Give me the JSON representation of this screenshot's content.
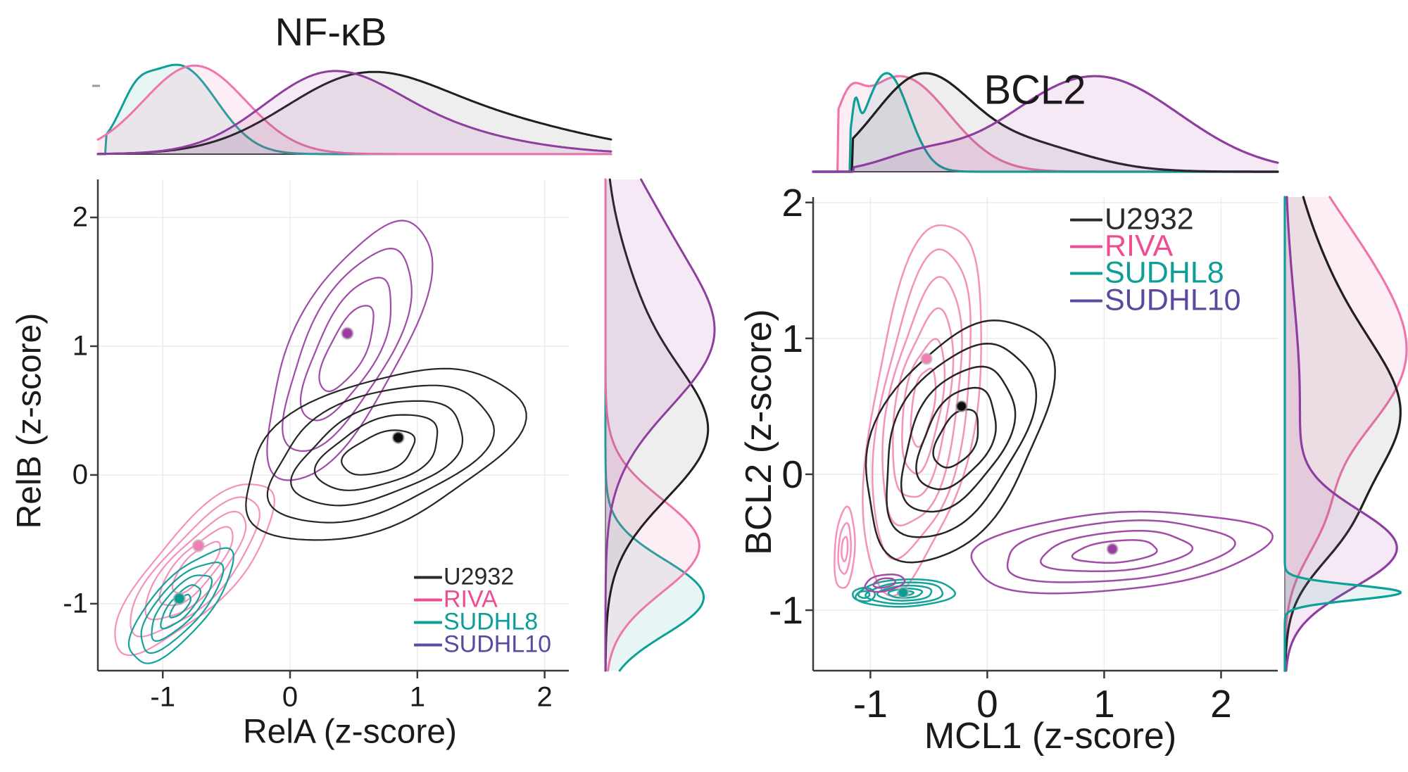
{
  "figure": {
    "background": "#ffffff",
    "grid_color": "#ECECEC",
    "spine_color": "#3A3A3A"
  },
  "chart_data": [
    {
      "id": "nfkb",
      "type": "contour-joint-kde",
      "title": "NF-κB",
      "xlabel": "RelA (z-score)",
      "ylabel": "RelB (z-score)",
      "xlim": [
        -1.51,
        2.19
      ],
      "ylim": [
        -1.52,
        2.295
      ],
      "grid": true,
      "legend_position": "bottom-right",
      "x_ticks": [
        {
          "v": -1,
          "label": "-1"
        },
        {
          "v": 0,
          "label": "0"
        },
        {
          "v": 1,
          "label": "1"
        },
        {
          "v": 2,
          "label": "2"
        }
      ],
      "y_ticks": [
        {
          "v": 2,
          "label": "2"
        },
        {
          "v": 1,
          "label": "1"
        },
        {
          "v": 0,
          "label": "0"
        },
        {
          "v": -1,
          "label": "-1"
        }
      ],
      "contour_order": [
        1,
        2,
        3,
        0
      ],
      "kde_top_order": [
        2,
        1,
        0,
        3
      ],
      "kde_side_order": [
        2,
        1,
        0,
        3
      ],
      "series": [
        {
          "name": "U2932",
          "colors": {
            "line": "#262626",
            "legend": "#2B2B2B",
            "dot": "#0D0D0D",
            "kde_line": "#1F1F1F",
            "fill": "rgba(90,90,90,0.10)"
          },
          "mean": [
            0.85,
            0.29
          ],
          "contour": {
            "cx": 0.7,
            "cy": 0.17,
            "a": 1.15,
            "b": 0.56,
            "angle_deg": 21,
            "levels": [
              1,
              0.8,
              0.61,
              0.44,
              0.26
            ],
            "wobble": 0.07,
            "seed": 2.1
          },
          "kde_top": {
            "components": [
              [
                0.52,
                0.6,
                1.0
              ],
              [
                1.5,
                0.8,
                0.5
              ]
            ],
            "height": 0.92
          },
          "kde_side": {
            "components": [
              [
                0.3,
                0.5,
                1.0
              ],
              [
                1.25,
                0.55,
                0.28
              ]
            ],
            "width": 0.94
          }
        },
        {
          "name": "RIVA",
          "colors": {
            "line": "#F491BC",
            "legend": "#EE4D94",
            "dot": "#F07DB3",
            "kde_line": "#F075AC",
            "fill": "rgba(244,145,188,0.16)"
          },
          "mean": [
            -0.72,
            -0.55
          ],
          "contour": {
            "cx": -0.74,
            "cy": -0.72,
            "a": 0.86,
            "b": 0.3,
            "angle_deg": 47,
            "levels": [
              1,
              0.81,
              0.63,
              0.46,
              0.3
            ],
            "wobble": 0.07,
            "seed": 5.3
          },
          "kde_top": {
            "components": [
              [
                -0.75,
                0.4,
                1.0
              ]
            ],
            "height": 0.99
          },
          "kde_side": {
            "components": [
              [
                -0.55,
                0.36,
                1.0
              ]
            ],
            "width": 0.86
          }
        },
        {
          "name": "SUDHL8",
          "colors": {
            "line": "#14A29B",
            "legend": "#0E9E96",
            "dot": "#0C9C94",
            "kde_line": "#0DA099",
            "fill": "rgba(20,162,155,0.10)"
          },
          "mean": [
            -0.87,
            -0.96
          ],
          "contour": {
            "cx": -0.86,
            "cy": -1.02,
            "a": 0.56,
            "b": 0.21,
            "angle_deg": 48,
            "levels": [
              1,
              0.79,
              0.58,
              0.38,
              0.2
            ],
            "wobble": 0.06,
            "seed": 8.2
          },
          "kde_top": {
            "components": [
              [
                -0.88,
                0.3,
                1.0
              ],
              [
                -1.22,
                0.12,
                0.28
              ]
            ],
            "height": 1.0,
            "clip_min": -1.45
          },
          "kde_side": {
            "components": [
              [
                -0.95,
                0.29,
                1.0
              ]
            ],
            "width": 0.9
          }
        },
        {
          "name": "SUDHL10",
          "colors": {
            "line": "#A14CA8",
            "legend": "#5C489E",
            "dot": "#9C3BA4",
            "kde_line": "#8F3EA0",
            "fill": "rgba(161,76,168,0.12)"
          },
          "mean": [
            0.45,
            1.1
          ],
          "contour": {
            "cx": 0.45,
            "cy": 0.98,
            "a": 1.12,
            "b": 0.42,
            "angle_deg": 62,
            "levels": [
              1,
              0.78,
              0.55,
              0.33
            ],
            "wobble": 0.06,
            "seed": 3.7
          },
          "kde_top": {
            "components": [
              [
                0.3,
                0.52,
                1.0
              ],
              [
                1.1,
                0.5,
                0.18
              ],
              [
                1.6,
                0.6,
                0.1
              ]
            ],
            "height": 0.93
          },
          "kde_side": {
            "components": [
              [
                1.08,
                0.56,
                1.0
              ],
              [
                2.05,
                0.45,
                0.28
              ]
            ],
            "width": 1.0
          }
        }
      ]
    },
    {
      "id": "bcl2",
      "type": "contour-joint-kde",
      "title": "BCL2",
      "xlabel": "MCL1 (z-score)",
      "ylabel": "BCL2 (z-score)",
      "xlim": [
        -1.49,
        2.485
      ],
      "ylim": [
        -1.445,
        2.04
      ],
      "grid": true,
      "legend_position": "top-right",
      "x_ticks": [
        {
          "v": -1,
          "label": "-1"
        },
        {
          "v": 0,
          "label": "0"
        },
        {
          "v": 1,
          "label": "1"
        },
        {
          "v": 2,
          "label": "2"
        }
      ],
      "y_ticks": [
        {
          "v": 2,
          "label": "2"
        },
        {
          "v": 1,
          "label": "1"
        },
        {
          "v": 0,
          "label": "0"
        },
        {
          "v": -1,
          "label": "-1"
        }
      ],
      "contour_order": [
        1,
        2,
        3,
        0
      ],
      "kde_top_order": [
        1,
        2,
        0,
        3
      ],
      "kde_side_order": [
        1,
        0,
        3,
        2
      ],
      "series": [
        {
          "name": "U2932",
          "colors": {
            "line": "#262626",
            "legend": "#2B2B2B",
            "dot": "#0D0D0D",
            "kde_line": "#1F1F1F",
            "fill": "rgba(90,90,90,0.10)"
          },
          "mean": [
            -0.22,
            0.5
          ],
          "contour": {
            "cx": -0.26,
            "cy": 0.26,
            "a": 1.02,
            "b": 0.62,
            "angle_deg": 52,
            "levels": [
              1,
              0.8,
              0.6,
              0.42,
              0.24
            ],
            "wobble": 0.07,
            "seed": 2.6
          },
          "kde_top": {
            "components": [
              [
                -0.58,
                0.4,
                1.0
              ],
              [
                0.25,
                0.55,
                0.33
              ]
            ],
            "height": 1.0,
            "clip_min": -1.15
          },
          "kde_side": {
            "components": [
              [
                0.38,
                0.55,
                1.0
              ],
              [
                1.35,
                0.6,
                0.32
              ],
              [
                -0.45,
                0.28,
                0.25
              ]
            ],
            "width": 0.95
          }
        },
        {
          "name": "RIVA",
          "colors": {
            "line": "#F491BC",
            "legend": "#EE4D94",
            "dot": "#F07DB3",
            "kde_line": "#F075AC",
            "fill": "rgba(244,145,188,0.16)"
          },
          "mean": [
            -0.52,
            0.85
          ],
          "contour": {
            "cx": -0.55,
            "cy": 0.5,
            "a": 1.38,
            "b": 0.44,
            "angle_deg": 79,
            "levels": [
              1,
              0.83,
              0.67,
              0.51,
              0.36,
              0.21
            ],
            "wobble": 0.07,
            "seed": 6.1
          },
          "extra_contours": [
            {
              "cx": -1.22,
              "cy": -0.55,
              "a": 0.3,
              "b": 0.085,
              "angle_deg": 86,
              "levels": [
                1,
                0.62,
                0.3
              ],
              "wobble": 0.05,
              "seed": 1.2
            }
          ],
          "kde_top": {
            "components": [
              [
                -0.75,
                0.42,
                1.0
              ],
              [
                -1.18,
                0.1,
                0.3
              ]
            ],
            "height": 0.97,
            "clip_min": -1.28
          },
          "kde_side": {
            "components": [
              [
                0.8,
                0.58,
                1.0
              ],
              [
                1.7,
                0.5,
                0.38
              ],
              [
                -0.35,
                0.3,
                0.22
              ]
            ],
            "width": 1.0
          }
        },
        {
          "name": "SUDHL8",
          "colors": {
            "line": "#14A29B",
            "legend": "#0E9E96",
            "dot": "#0C9C94",
            "kde_line": "#0DA099",
            "fill": "rgba(20,162,155,0.10)"
          },
          "mean": [
            -0.72,
            -0.87
          ],
          "contour": {
            "cx": -0.7,
            "cy": -0.875,
            "a": 0.42,
            "b": 0.1,
            "angle_deg": 2,
            "levels": [
              1,
              0.78,
              0.55,
              0.34,
              0.16
            ],
            "wobble": 0.05,
            "seed": 9.4
          },
          "extra_contours": [
            {
              "cx": -1.055,
              "cy": -0.885,
              "a": 0.095,
              "b": 0.05,
              "angle_deg": 0,
              "levels": [
                1,
                0.5
              ],
              "wobble": 0.04,
              "seed": 4.4
            }
          ],
          "kde_top": {
            "components": [
              [
                -0.86,
                0.19,
                1.0
              ],
              [
                -1.13,
                0.03,
                0.38
              ]
            ],
            "height": 1.0,
            "clip_min": -1.17
          },
          "kde_side": {
            "components": [
              [
                -0.87,
                0.055,
                1.0
              ]
            ],
            "width": 0.95
          }
        },
        {
          "name": "SUDHL10",
          "colors": {
            "line": "#A14CA8",
            "legend": "#5C489E",
            "dot": "#9C3BA4",
            "kde_line": "#8F3EA0",
            "fill": "rgba(161,76,168,0.12)"
          },
          "mean": [
            1.07,
            -0.55
          ],
          "contour": {
            "cx": 1.1,
            "cy": -0.57,
            "a": 1.28,
            "b": 0.285,
            "angle_deg": 4,
            "levels": [
              1,
              0.76,
              0.5,
              0.28
            ],
            "wobble": 0.06,
            "seed": 7.7
          },
          "extra_contours": [
            {
              "cx": -0.88,
              "cy": -0.8,
              "a": 0.17,
              "b": 0.06,
              "angle_deg": 8,
              "levels": [
                1,
                0.55
              ],
              "wobble": 0.05,
              "seed": 2.2
            }
          ],
          "kde_top": {
            "components": [
              [
                0.92,
                0.72,
                1.0
              ],
              [
                -0.6,
                0.32,
                0.13
              ]
            ],
            "height": 0.97,
            "clip_min": -1.14
          },
          "kde_side": {
            "components": [
              [
                -0.55,
                0.29,
                1.0
              ],
              [
                0.55,
                0.75,
                0.14
              ]
            ],
            "width": 0.92
          }
        }
      ]
    }
  ]
}
